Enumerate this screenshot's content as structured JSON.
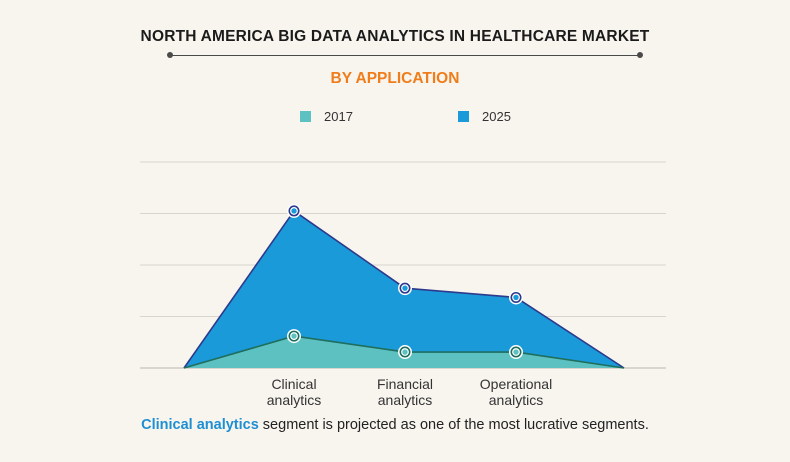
{
  "header": {
    "title": "NORTH AMERICA BIG DATA ANALYTICS IN HEALTHCARE MARKET",
    "subtitle": "BY APPLICATION"
  },
  "footer": {
    "highlight": "Clinical analytics",
    "text": " segment is projected as one of the most lucrative segments."
  },
  "colors": {
    "title": "#1b1b1b",
    "subtitle": "#f07d1b",
    "highlight": "#1e8fd2",
    "background": "#f8f5ef"
  },
  "chart_data": {
    "type": "area",
    "categories": [
      "",
      "Clinical analytics",
      "Financial analytics",
      "Operational analytics",
      ""
    ],
    "category_lines": [
      [],
      [
        "Clinical",
        "analytics"
      ],
      [
        "Financial",
        "analytics"
      ],
      [
        "Operational",
        "analytics"
      ],
      []
    ],
    "series": [
      {
        "name": "2025",
        "values": [
          0,
          3.05,
          1.55,
          1.37,
          0
        ],
        "color": "#1a9ad9",
        "stroke": "#2d3a8c",
        "marker": "#2d3a8c"
      },
      {
        "name": "2017",
        "values": [
          0,
          0.62,
          0.31,
          0.31,
          0
        ],
        "color": "#5cc1c0",
        "stroke": "#1f6e5e",
        "marker": "#1f6e5e"
      }
    ],
    "legend": [
      {
        "name": "2017",
        "color": "#5cc1c0"
      },
      {
        "name": "2025",
        "color": "#1a9ad9"
      }
    ],
    "ylim": [
      0,
      4
    ],
    "grid": true,
    "legend_position": "top",
    "xlabel": "",
    "ylabel": ""
  }
}
